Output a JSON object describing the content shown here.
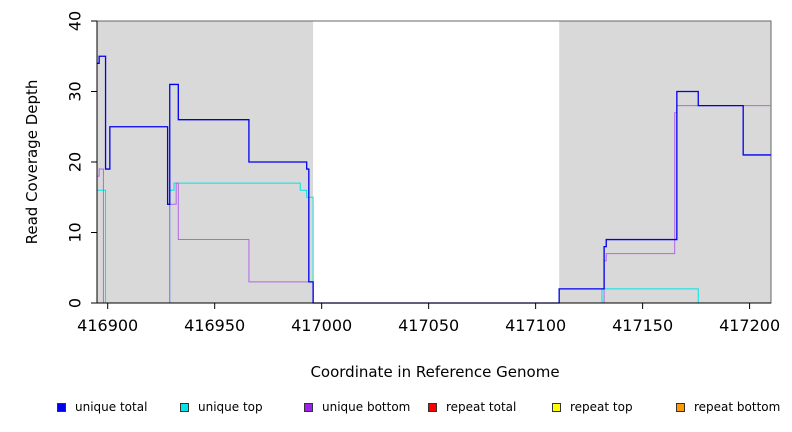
{
  "chart_data": {
    "type": "line",
    "title": "",
    "xlabel": "Coordinate in Reference Genome",
    "ylabel": "Read Coverage Depth",
    "xlim": [
      416895,
      417210
    ],
    "ylim": [
      0,
      40
    ],
    "x_ticks": [
      416900,
      416950,
      417000,
      417050,
      417100,
      417150,
      417200
    ],
    "y_ticks": [
      0,
      10,
      20,
      30,
      40
    ],
    "shaded_regions": [
      {
        "x_start": 416895,
        "x_end": 416996,
        "color": "#d9d9d9"
      },
      {
        "x_start": 417111,
        "x_end": 417210,
        "color": "#d9d9d9"
      }
    ],
    "background_color": "#ffffff",
    "legend_position": "bottom",
    "series": [
      {
        "name": "unique total",
        "color": "#0000ee",
        "x": [
          416895,
          416896,
          416898,
          416899,
          416901,
          416927,
          416928,
          416929,
          416932,
          416933,
          416966,
          416989,
          416993,
          416994,
          416996,
          417111,
          417131,
          417132,
          417133,
          417165,
          417166,
          417176,
          417197,
          417210
        ],
        "y": [
          34,
          35,
          35,
          19,
          25,
          25,
          14,
          31,
          31,
          26,
          20,
          20,
          19,
          3,
          0,
          2,
          2,
          8,
          9,
          9,
          30,
          28,
          21,
          21
        ]
      },
      {
        "name": "unique top",
        "color": "#00e5e5",
        "x": [
          416895,
          416896,
          416899,
          416929,
          416931,
          416990,
          416993,
          416996,
          417111,
          417131,
          417132,
          417175,
          417176,
          417210
        ],
        "y": [
          16,
          16,
          0,
          16,
          17,
          16,
          15,
          0,
          0,
          2,
          2,
          2,
          0,
          0
        ]
      },
      {
        "name": "unique bottom",
        "color": "#b266e6",
        "x": [
          416895,
          416896,
          416898,
          416929,
          416932,
          416933,
          416966,
          416994,
          416996,
          417111,
          417132,
          417133,
          417165,
          417166,
          417176,
          417210
        ],
        "y": [
          18,
          19,
          0,
          14,
          17,
          9,
          3,
          3,
          0,
          0,
          6,
          7,
          27,
          28,
          28,
          28
        ]
      },
      {
        "name": "repeat total",
        "color": "#ff0000",
        "x": [
          416895,
          417210
        ],
        "y": [
          0,
          0
        ]
      },
      {
        "name": "repeat top",
        "color": "#ffff00",
        "x": [
          416895,
          417210
        ],
        "y": [
          0,
          0
        ]
      },
      {
        "name": "repeat bottom",
        "color": "#ff9900",
        "x": [
          416895,
          417210
        ],
        "y": [
          0,
          0
        ]
      }
    ]
  },
  "legend_items": [
    {
      "label": "unique total",
      "color": "#0000ee"
    },
    {
      "label": "unique top",
      "color": "#00e5e5"
    },
    {
      "label": "unique bottom",
      "color": "#a020f0"
    },
    {
      "label": "repeat total",
      "color": "#ff0000"
    },
    {
      "label": "repeat top",
      "color": "#ffff00"
    },
    {
      "label": "repeat bottom",
      "color": "#ff9900"
    }
  ]
}
